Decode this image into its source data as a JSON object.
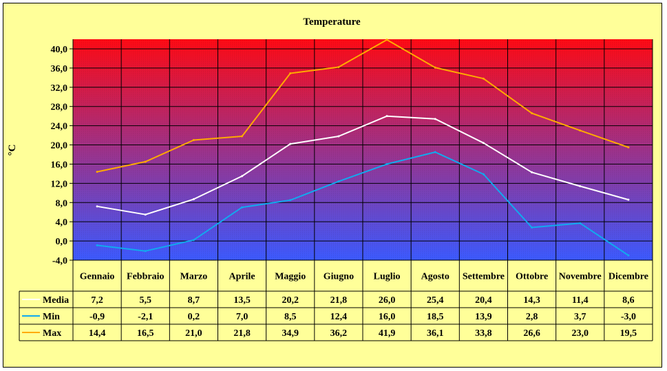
{
  "chart_data": {
    "type": "line",
    "title": "Temperature",
    "ylabel": "°C",
    "ylim": [
      -4,
      42
    ],
    "ytick_step": 4,
    "ytick_labels": [
      "-4,0",
      "0,0",
      "4,0",
      "8,0",
      "12,0",
      "16,0",
      "20,0",
      "24,0",
      "28,0",
      "32,0",
      "36,0",
      "40,0"
    ],
    "categories": [
      "Gennaio",
      "Febbraio",
      "Marzo",
      "Aprile",
      "Maggio",
      "Giugno",
      "Luglio",
      "Agosto",
      "Settembre",
      "Ottobre",
      "Novembre",
      "Dicembre"
    ],
    "grid": true,
    "legend": "data-table",
    "series": [
      {
        "name": "Media",
        "color": "#ffffff",
        "values": [
          7.2,
          5.5,
          8.7,
          13.5,
          20.2,
          21.8,
          26.0,
          25.4,
          20.4,
          14.3,
          11.4,
          8.6
        ],
        "labels": [
          "7,2",
          "5,5",
          "8,7",
          "13,5",
          "20,2",
          "21,8",
          "26,0",
          "25,4",
          "20,4",
          "14,3",
          "11,4",
          "8,6"
        ]
      },
      {
        "name": "Min",
        "color": "#11aaee",
        "values": [
          -0.9,
          -2.1,
          0.2,
          7.0,
          8.5,
          12.4,
          16.0,
          18.5,
          13.9,
          2.8,
          3.7,
          -3.0
        ],
        "labels": [
          "-0,9",
          "-2,1",
          "0,2",
          "7,0",
          "8,5",
          "12,4",
          "16,0",
          "18,5",
          "13,9",
          "2,8",
          "3,7",
          "-3,0"
        ]
      },
      {
        "name": "Max",
        "color": "#ffaa00",
        "values": [
          14.4,
          16.5,
          21.0,
          21.8,
          34.9,
          36.2,
          41.9,
          36.1,
          33.8,
          26.6,
          23.0,
          19.5
        ],
        "labels": [
          "14,4",
          "16,5",
          "21,0",
          "21,8",
          "34,9",
          "36,2",
          "41,9",
          "36,1",
          "33,8",
          "26,6",
          "23,0",
          "19,5"
        ]
      }
    ],
    "colors": {
      "background": "#ffff99",
      "plot_top": "#ff0a14",
      "plot_bottom": "#3c5aff"
    }
  }
}
